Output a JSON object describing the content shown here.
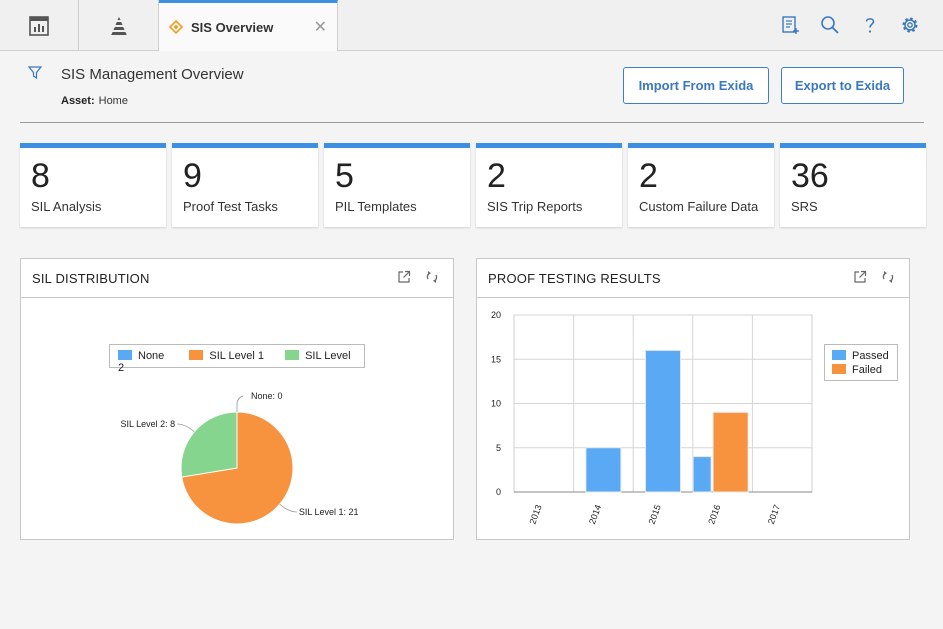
{
  "tabs": {
    "active_label": "SIS Overview"
  },
  "header": {
    "title": "SIS Management Overview",
    "asset_label": "Asset:",
    "asset_value": "Home",
    "import_button": "Import From Exida",
    "export_button": "Export to Exida"
  },
  "cards": [
    {
      "value": "8",
      "label": "SIL Analysis"
    },
    {
      "value": "9",
      "label": "Proof Test Tasks"
    },
    {
      "value": "5",
      "label": "PIL Templates"
    },
    {
      "value": "2",
      "label": "SIS Trip Reports"
    },
    {
      "value": "2",
      "label": "Custom Failure Data"
    },
    {
      "value": "36",
      "label": "SRS"
    }
  ],
  "colors": {
    "accent": "#3d8fe0",
    "none": "#5aa9f5",
    "sil1": "#f7923f",
    "sil2": "#86d58f",
    "passed": "#5aa9f5",
    "failed": "#f7923f"
  },
  "sil_panel": {
    "title": "SIL DISTRIBUTION",
    "legend": [
      "None",
      "SIL Level 1",
      "SIL Level 2"
    ],
    "slice_labels": [
      "None: 0",
      "SIL Level 1: 21",
      "SIL Level 2: 8"
    ]
  },
  "proof_panel": {
    "title": "PROOF TESTING RESULTS",
    "legend": [
      "Passed",
      "Failed"
    ]
  },
  "chart_data": [
    {
      "type": "pie",
      "categories": [
        "None",
        "SIL Level 1",
        "SIL Level 2"
      ],
      "values": [
        0,
        21,
        8
      ],
      "legend_position": "top"
    },
    {
      "type": "bar",
      "categories": [
        "2013",
        "2014",
        "2015",
        "2016",
        "2017"
      ],
      "series": [
        {
          "name": "Passed",
          "values": [
            0,
            5,
            16,
            4,
            0
          ]
        },
        {
          "name": "Failed",
          "values": [
            0,
            0,
            0,
            9,
            0
          ]
        }
      ],
      "ylim": [
        0,
        20
      ],
      "yticks": [
        "0",
        "5",
        "10",
        "15",
        "20"
      ],
      "grid": true,
      "legend_position": "right"
    }
  ]
}
